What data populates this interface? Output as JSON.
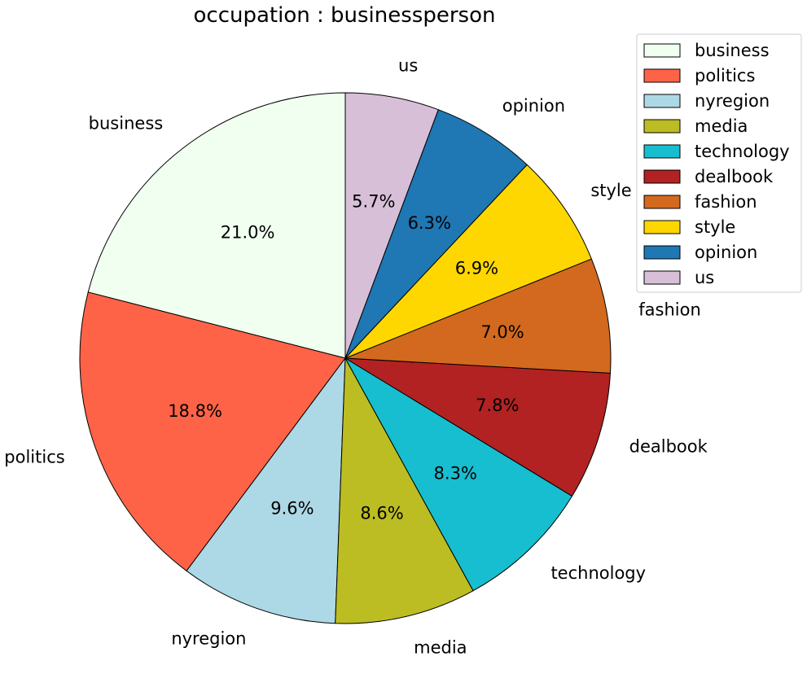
{
  "chart_data": {
    "type": "pie",
    "title": "occupation : businessperson",
    "start_angle_deg": 90,
    "direction": "counterclockwise",
    "legend_position": "top-right",
    "slices": [
      {
        "label": "business",
        "value": 21.0,
        "pct_label": "21.0%",
        "color": "#F0FFF0"
      },
      {
        "label": "politics",
        "value": 18.8,
        "pct_label": "18.8%",
        "color": "#FF6347"
      },
      {
        "label": "nyregion",
        "value": 9.6,
        "pct_label": "9.6%",
        "color": "#ADD8E6"
      },
      {
        "label": "media",
        "value": 8.6,
        "pct_label": "8.6%",
        "color": "#BCBD22"
      },
      {
        "label": "technology",
        "value": 8.3,
        "pct_label": "8.3%",
        "color": "#17BECF"
      },
      {
        "label": "dealbook",
        "value": 7.8,
        "pct_label": "7.8%",
        "color": "#B22222"
      },
      {
        "label": "fashion",
        "value": 7.0,
        "pct_label": "7.0%",
        "color": "#D2691E"
      },
      {
        "label": "style",
        "value": 6.9,
        "pct_label": "6.9%",
        "color": "#FFD700"
      },
      {
        "label": "opinion",
        "value": 6.3,
        "pct_label": "6.3%",
        "color": "#1F77B4"
      },
      {
        "label": "us",
        "value": 5.7,
        "pct_label": "5.7%",
        "color": "#D8BFD8"
      }
    ]
  }
}
